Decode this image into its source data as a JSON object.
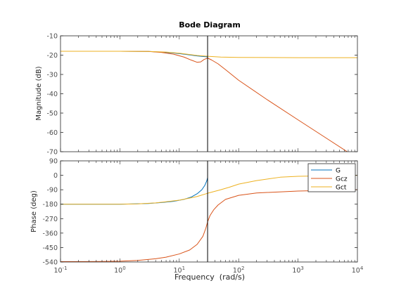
{
  "chart_data": {
    "type": "line",
    "title": "Bode Diagram",
    "xlabel": "Frequency  (rad/s)",
    "xscale": "log",
    "xlim": [
      0.1,
      10000
    ],
    "x_ticks": [
      {
        "value": 0.1,
        "base": "10",
        "exp": "-1"
      },
      {
        "value": 1,
        "base": "10",
        "exp": "0"
      },
      {
        "value": 10,
        "base": "10",
        "exp": "1"
      },
      {
        "value": 100,
        "base": "10",
        "exp": "2"
      },
      {
        "value": 1000,
        "base": "10",
        "exp": "3"
      },
      {
        "value": 10000,
        "base": "10",
        "exp": "4"
      }
    ],
    "grid": false,
    "legend": {
      "placement": "top-right of phase plot",
      "entries": [
        "G",
        "Gcz",
        "Gct"
      ]
    },
    "marker_line_x": 30,
    "colors": {
      "G": "#0072bd",
      "Gcz": "#d95319",
      "Gct": "#edb120",
      "marker": "#000000",
      "axes": "#262626",
      "tick_text": "#4d4d4d"
    },
    "magnitude": {
      "ylabel": "Magnitude (dB)",
      "ylim": [
        -70,
        -10
      ],
      "yticks": [
        -10,
        -20,
        -30,
        -40,
        -50,
        -60,
        -70
      ],
      "series": [
        {
          "name": "G",
          "x": [
            0.1,
            1,
            3,
            5,
            8,
            12,
            16,
            20,
            25,
            30
          ],
          "y": [
            -18,
            -18,
            -18.1,
            -18.4,
            -18.9,
            -19.5,
            -20.0,
            -20.4,
            -20.7,
            -20.9
          ]
        },
        {
          "name": "Gcz",
          "x": [
            0.1,
            1,
            3,
            5,
            8,
            12,
            16,
            20,
            23,
            26,
            30,
            35,
            45,
            60,
            100,
            300,
            1000,
            3000,
            8000
          ],
          "y": [
            -18,
            -18,
            -18.1,
            -18.6,
            -19.5,
            -21.0,
            -22.6,
            -23.7,
            -23.5,
            -22.3,
            -21.5,
            -22.5,
            -24.5,
            -27.5,
            -33,
            -43,
            -53.5,
            -63,
            -71.5
          ]
        },
        {
          "name": "Gct",
          "x": [
            0.1,
            1,
            3,
            6,
            10,
            15,
            20,
            30,
            50,
            100,
            1000,
            10000
          ],
          "y": [
            -18,
            -18,
            -18.1,
            -18.4,
            -19.0,
            -19.7,
            -20.2,
            -20.6,
            -21.0,
            -21.2,
            -21.3,
            -21.3
          ]
        }
      ]
    },
    "phase": {
      "ylabel": "Phase (deg)",
      "ylim": [
        -540,
        90
      ],
      "yticks": [
        90,
        0,
        -90,
        -180,
        -270,
        -360,
        -450,
        -540
      ],
      "series": [
        {
          "name": "G",
          "x": [
            0.1,
            1,
            3,
            5,
            8,
            12,
            16,
            20,
            24,
            27,
            29,
            30
          ],
          "y": [
            -180,
            -180,
            -176,
            -170,
            -162,
            -150,
            -135,
            -115,
            -90,
            -62,
            -35,
            -15
          ]
        },
        {
          "name": "Gcz",
          "x": [
            0.1,
            0.5,
            1,
            2,
            4,
            6,
            10,
            15,
            20,
            25,
            28,
            30,
            33,
            38,
            45,
            60,
            100,
            200,
            1000,
            10000
          ],
          "y": [
            -538,
            -537,
            -535,
            -530,
            -520,
            -510,
            -490,
            -465,
            -430,
            -380,
            -330,
            -290,
            -250,
            -215,
            -185,
            -150,
            -125,
            -110,
            -98,
            -90
          ]
        },
        {
          "name": "Gct",
          "x": [
            0.1,
            1,
            2,
            4,
            6,
            10,
            15,
            20,
            30,
            50,
            70,
            100,
            200,
            500,
            1000,
            10000
          ],
          "y": [
            -180,
            -180,
            -178,
            -172,
            -165,
            -155,
            -142,
            -132,
            -112,
            -90,
            -74,
            -55,
            -33,
            -12,
            -6,
            0
          ]
        }
      ]
    }
  }
}
